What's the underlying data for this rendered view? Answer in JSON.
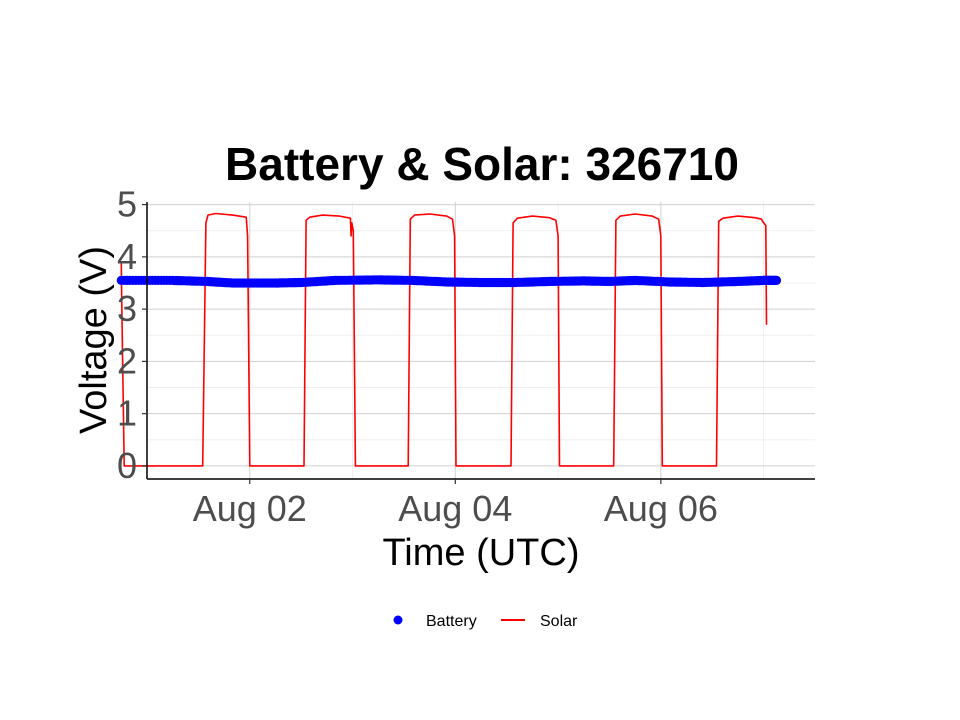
{
  "chart_data": {
    "type": "line",
    "title": "Battery & Solar:  326710",
    "xlabel": "Time (UTC)",
    "ylabel": "Voltage (V)",
    "x_range": [
      "2025-08-01T00:00",
      "2025-08-07T12:00"
    ],
    "ylim": [
      -0.25,
      5.05
    ],
    "x_ticks": [
      {
        "date": "2025-08-02T00:00",
        "label": "Aug 02"
      },
      {
        "date": "2025-08-04T00:00",
        "label": "Aug 04"
      },
      {
        "date": "2025-08-06T00:00",
        "label": "Aug 06"
      }
    ],
    "y_ticks": [
      0,
      1,
      2,
      3,
      4,
      5
    ],
    "grid": true,
    "legend_position": "bottom",
    "series": [
      {
        "name": "Battery",
        "style": "points",
        "color": "#0000ff",
        "points": [
          [
            "2025-07-31T18:00",
            3.55
          ],
          [
            "2025-08-01T06:00",
            3.55
          ],
          [
            "2025-08-01T14:00",
            3.53
          ],
          [
            "2025-08-01T20:00",
            3.5
          ],
          [
            "2025-08-02T06:00",
            3.5
          ],
          [
            "2025-08-02T12:00",
            3.51
          ],
          [
            "2025-08-02T20:00",
            3.55
          ],
          [
            "2025-08-03T06:00",
            3.56
          ],
          [
            "2025-08-03T14:00",
            3.55
          ],
          [
            "2025-08-03T22:00",
            3.52
          ],
          [
            "2025-08-04T06:00",
            3.51
          ],
          [
            "2025-08-04T14:00",
            3.51
          ],
          [
            "2025-08-04T22:00",
            3.53
          ],
          [
            "2025-08-05T06:00",
            3.54
          ],
          [
            "2025-08-05T12:00",
            3.53
          ],
          [
            "2025-08-05T18:00",
            3.55
          ],
          [
            "2025-08-06T02:00",
            3.52
          ],
          [
            "2025-08-06T10:00",
            3.51
          ],
          [
            "2025-08-06T18:00",
            3.53
          ],
          [
            "2025-08-07T00:00",
            3.55
          ],
          [
            "2025-08-07T03:00",
            3.55
          ]
        ]
      },
      {
        "name": "Solar",
        "style": "line",
        "color": "#ff0000",
        "points": [
          [
            "2025-07-31T18:00",
            3.9
          ],
          [
            "2025-07-31T18:05",
            3.2
          ],
          [
            "2025-07-31T18:40",
            0.0
          ],
          [
            "2025-08-01T13:00",
            0.0
          ],
          [
            "2025-08-01T13:45",
            4.65
          ],
          [
            "2025-08-01T14:15",
            4.8
          ],
          [
            "2025-08-01T16:00",
            4.83
          ],
          [
            "2025-08-01T20:00",
            4.8
          ],
          [
            "2025-08-01T23:10",
            4.76
          ],
          [
            "2025-08-01T23:30",
            4.4
          ],
          [
            "2025-08-02T00:00",
            0.0
          ],
          [
            "2025-08-02T12:40",
            0.0
          ],
          [
            "2025-08-02T13:10",
            4.7
          ],
          [
            "2025-08-02T14:00",
            4.76
          ],
          [
            "2025-08-02T17:00",
            4.8
          ],
          [
            "2025-08-02T21:00",
            4.78
          ],
          [
            "2025-08-02T23:30",
            4.74
          ],
          [
            "2025-08-02T23:40",
            4.4
          ],
          [
            "2025-08-02T23:50",
            4.65
          ],
          [
            "2025-08-03T00:10",
            4.5
          ],
          [
            "2025-08-03T00:40",
            0.0
          ],
          [
            "2025-08-03T13:00",
            0.0
          ],
          [
            "2025-08-03T13:30",
            4.72
          ],
          [
            "2025-08-03T14:30",
            4.8
          ],
          [
            "2025-08-03T18:00",
            4.82
          ],
          [
            "2025-08-03T22:00",
            4.78
          ],
          [
            "2025-08-03T23:20",
            4.72
          ],
          [
            "2025-08-03T23:50",
            4.4
          ],
          [
            "2025-08-04T00:10",
            0.0
          ],
          [
            "2025-08-04T13:00",
            0.0
          ],
          [
            "2025-08-04T13:30",
            4.65
          ],
          [
            "2025-08-04T14:30",
            4.74
          ],
          [
            "2025-08-04T18:00",
            4.78
          ],
          [
            "2025-08-04T22:00",
            4.75
          ],
          [
            "2025-08-04T23:30",
            4.7
          ],
          [
            "2025-08-05T00:00",
            4.4
          ],
          [
            "2025-08-05T00:20",
            0.0
          ],
          [
            "2025-08-05T13:00",
            0.0
          ],
          [
            "2025-08-05T13:30",
            4.7
          ],
          [
            "2025-08-05T14:30",
            4.78
          ],
          [
            "2025-08-05T18:00",
            4.82
          ],
          [
            "2025-08-05T22:00",
            4.78
          ],
          [
            "2025-08-05T23:30",
            4.72
          ],
          [
            "2025-08-06T00:00",
            4.4
          ],
          [
            "2025-08-06T00:20",
            0.0
          ],
          [
            "2025-08-06T13:00",
            0.0
          ],
          [
            "2025-08-06T13:30",
            4.68
          ],
          [
            "2025-08-06T14:30",
            4.74
          ],
          [
            "2025-08-06T18:00",
            4.78
          ],
          [
            "2025-08-06T22:00",
            4.75
          ],
          [
            "2025-08-06T23:30",
            4.72
          ],
          [
            "2025-08-06T23:45",
            4.68
          ],
          [
            "2025-08-07T00:30",
            4.6
          ],
          [
            "2025-08-07T00:40",
            2.7
          ]
        ]
      }
    ]
  }
}
